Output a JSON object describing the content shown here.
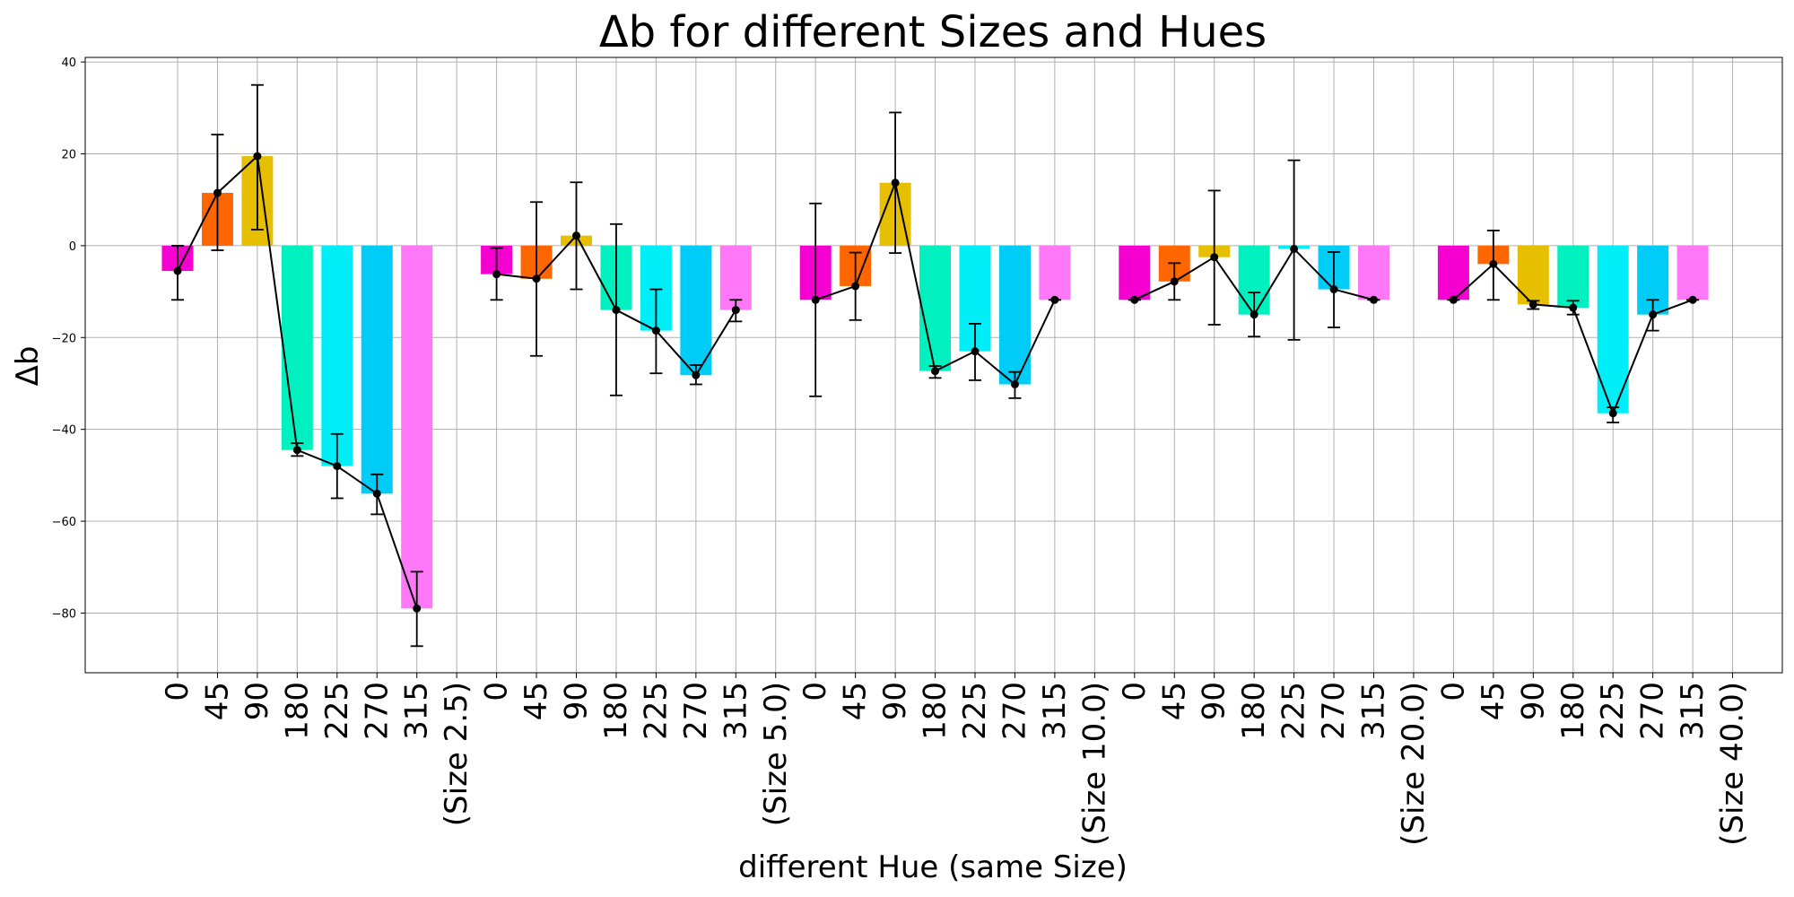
{
  "chart_data": {
    "type": "bar",
    "title": "Δb for different Sizes and Hues",
    "xlabel": "different Hue (same Size)",
    "ylabel": "Δb",
    "ylim": [
      -93,
      41
    ],
    "yticks": [
      40,
      20,
      0,
      -20,
      -40,
      -60,
      -80
    ],
    "ytick_labels": [
      "40",
      "20",
      "0",
      "−20",
      "−40",
      "−60",
      "−80"
    ],
    "grid": true,
    "hue_labels": [
      "0",
      "45",
      "90",
      "180",
      "225",
      "270",
      "315"
    ],
    "hue_colors": [
      "#f500d0",
      "#ff6600",
      "#e6c000",
      "#00f0c0",
      "#00eef8",
      "#00ccf8",
      "#ff78f8"
    ],
    "line_color": "#000000",
    "groups": [
      {
        "label": "(Size 2.5)",
        "values": [
          -5.5,
          11.5,
          19.5,
          -44.5,
          -48,
          -54,
          -79
        ],
        "err_low": [
          -11.8,
          -1,
          3.5,
          -45.8,
          -55,
          -58.5,
          -87.2
        ],
        "err_high": [
          0,
          24.2,
          35,
          -43,
          -41,
          -49.8,
          -71
        ]
      },
      {
        "label": "(Size 5.0)",
        "values": [
          -6.2,
          -7.2,
          2.2,
          -14,
          -18.5,
          -28.2,
          -14
        ],
        "err_low": [
          -11.8,
          -24,
          -9.5,
          -32.6,
          -27.8,
          -30.2,
          -16.5
        ],
        "err_high": [
          -0.5,
          9.5,
          13.8,
          4.7,
          -9.5,
          -26,
          -11.8
        ]
      },
      {
        "label": "(Size 10.0)",
        "values": [
          -11.8,
          -8.8,
          13.7,
          -27.3,
          -23,
          -30.2,
          -11.8
        ],
        "err_low": [
          -32.8,
          -16.2,
          -1.6,
          -28.8,
          -29.3,
          -33.2,
          -11.8
        ],
        "err_high": [
          9.2,
          -1.5,
          29,
          -26.2,
          -17,
          -27.5,
          -11.8
        ]
      },
      {
        "label": "(Size 20.0)",
        "values": [
          -11.8,
          -7.8,
          -2.5,
          -15,
          -0.7,
          -9.5,
          -11.8
        ],
        "err_low": [
          -11.8,
          -11.8,
          -17.2,
          -19.8,
          -20.5,
          -17.8,
          -11.8
        ],
        "err_high": [
          -11.8,
          -3.8,
          12,
          -10.2,
          18.6,
          -1.4,
          -11.8
        ]
      },
      {
        "label": "(Size 40.0)",
        "values": [
          -11.8,
          -4,
          -12.8,
          -13.5,
          -36.5,
          -15,
          -11.8
        ],
        "err_low": [
          -11.8,
          -11.8,
          -13.8,
          -15,
          -38.5,
          -18.5,
          -11.8
        ],
        "err_high": [
          -11.8,
          3.3,
          -12,
          -12,
          -35.2,
          -11.8,
          -11.8
        ]
      }
    ]
  }
}
